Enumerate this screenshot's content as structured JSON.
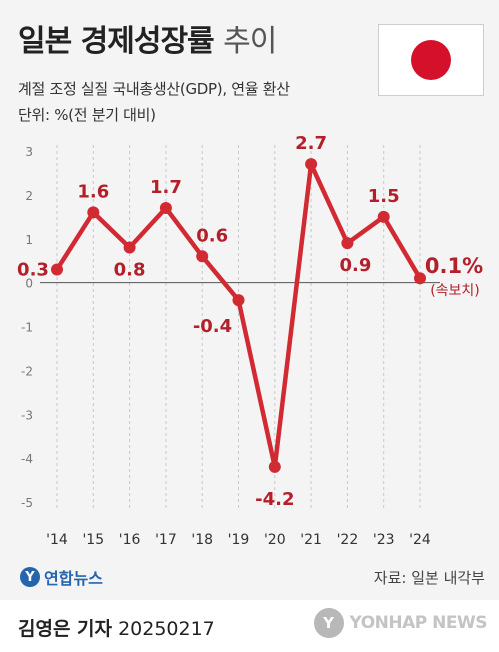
{
  "header": {
    "title_main": "일본 경제성장률",
    "title_sub": "추이",
    "subtitle1": "계절 조정 실질 국내총생산(GDP), 연율 환산",
    "subtitle2": "단위: %(전 분기 대비)"
  },
  "flag": {
    "name": "japan-flag",
    "field_color": "#ffffff",
    "sun_color": "#d5102b"
  },
  "chart_data": {
    "type": "line",
    "categories": [
      "'14",
      "'15",
      "'16",
      "'17",
      "'18",
      "'19",
      "'20",
      "'21",
      "'22",
      "'23",
      "'24"
    ],
    "values": [
      0.3,
      1.6,
      0.8,
      1.7,
      0.6,
      -0.4,
      -4.2,
      2.7,
      0.9,
      1.5,
      0.1
    ],
    "data_labels": [
      "0.3",
      "1.6",
      "0.8",
      "1.7",
      "0.6",
      "-0.4",
      "-4.2",
      "2.7",
      "0.9",
      "1.5",
      "0.1%"
    ],
    "final_annotation": "(속보치)",
    "ylim": [
      -5,
      3
    ],
    "yticks": [
      "3",
      "2",
      "1",
      "0",
      "-1",
      "-2",
      "-3",
      "-4",
      "-5"
    ],
    "grid": "vertical dashed",
    "line_color": "#d12a33",
    "label_color": "#b3202a"
  },
  "source": "자료: 일본 내각부",
  "brand": {
    "mark": "Y",
    "name": "연합뉴스"
  },
  "footer": {
    "reporter": "김영은 기자",
    "date": "20250217",
    "agency_mark": "Y",
    "agency": "YONHAP NEWS"
  }
}
